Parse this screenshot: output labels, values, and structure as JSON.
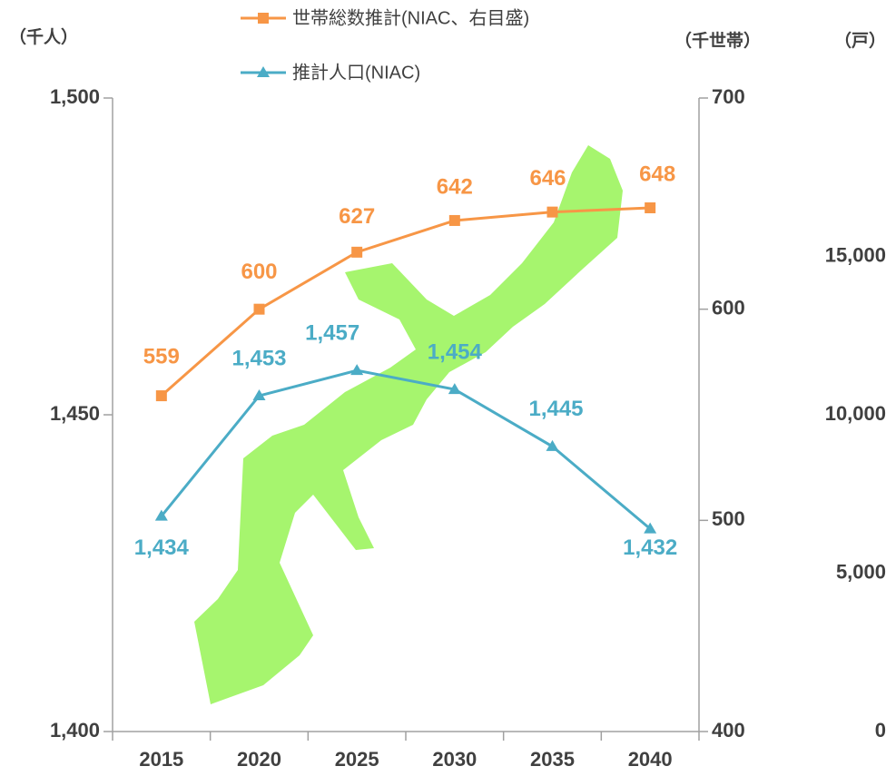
{
  "chart_data": {
    "type": "line",
    "categories": [
      "2015",
      "2020",
      "2025",
      "2030",
      "2035",
      "2040"
    ],
    "ylabel": "（千人）",
    "y2label": "（千世帯）",
    "y3label": "（戸）",
    "ylim": [
      1400,
      1500
    ],
    "yticks": [
      {
        "value": 1400,
        "label": "1,400"
      },
      {
        "value": 1450,
        "label": "1,450"
      },
      {
        "value": 1500,
        "label": "1,500"
      }
    ],
    "y2lim": [
      400,
      700
    ],
    "y2ticks": [
      400,
      500,
      600,
      700
    ],
    "y3lim": [
      0,
      20000
    ],
    "y3ticks": [
      0,
      {
        "value": 5000,
        "label": "5,000"
      },
      {
        "value": 10000,
        "label": "10,000"
      },
      {
        "value": 15000,
        "label": "15,000"
      }
    ],
    "series": [
      {
        "name": "世帯総数推計(NIAC、右目盛)",
        "color": "#f79646",
        "marker": "square",
        "axis": "y2",
        "values": [
          559,
          600,
          627,
          642,
          646,
          648
        ]
      },
      {
        "name": "推計人口(NIAC)",
        "color": "#4bacc6",
        "marker": "triangle",
        "values": [
          1434,
          1453,
          1457,
          1454,
          1445,
          1432
        ],
        "value_labels": [
          "1,434",
          "1,453",
          "1,457",
          "1,454",
          "1,445",
          "1,432"
        ]
      }
    ]
  }
}
